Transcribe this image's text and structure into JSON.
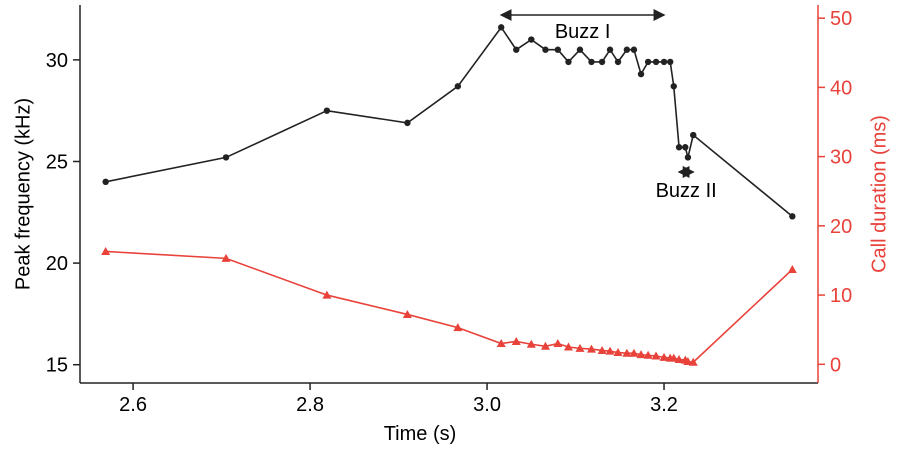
{
  "chart_data": {
    "type": "line",
    "x_label": "Time (s)",
    "y_label": "Peak frequency (kHz)",
    "y2_label": "Call duration (ms)",
    "x": [
      2.569,
      2.705,
      2.819,
      2.91,
      2.967,
      3.016,
      3.033,
      3.05,
      3.066,
      3.08,
      3.092,
      3.105,
      3.118,
      3.13,
      3.139,
      3.148,
      3.158,
      3.166,
      3.174,
      3.182,
      3.191,
      3.2,
      3.207,
      3.211,
      3.217,
      3.224,
      3.227,
      3.233,
      3.345
    ],
    "series": [
      {
        "color": "#222222",
        "marker": "circle",
        "axis": "y",
        "values": [
          24.0,
          25.2,
          27.5,
          26.9,
          28.7,
          31.6,
          30.5,
          31.0,
          30.5,
          30.5,
          29.9,
          30.5,
          29.9,
          29.9,
          30.5,
          29.9,
          30.5,
          30.5,
          29.3,
          29.9,
          29.9,
          29.9,
          29.9,
          28.7,
          25.7,
          25.7,
          25.2,
          26.3,
          22.3
        ]
      },
      {
        "color": "#e8423a",
        "marker": "triangle",
        "axis": "y2",
        "values": [
          16.3,
          15.3,
          10.0,
          7.2,
          5.3,
          3.0,
          3.3,
          2.9,
          2.6,
          3.0,
          2.5,
          2.3,
          2.2,
          2.0,
          1.9,
          1.7,
          1.6,
          1.6,
          1.4,
          1.3,
          1.2,
          1.0,
          0.9,
          0.9,
          0.7,
          0.6,
          0.4,
          0.3,
          13.7
        ]
      }
    ],
    "xlim": [
      2.54,
      3.374
    ],
    "xticks": [
      2.6,
      2.8,
      {
        "value": 3.0,
        "label": "3.0"
      },
      3.2
    ],
    "ylim": [
      14.1,
      32.7
    ],
    "yticks": [
      15,
      20,
      25,
      30
    ],
    "y2lim": [
      -2.7,
      51.9
    ],
    "y2ticks": [
      0,
      10,
      20,
      30,
      40,
      50
    ],
    "y2_color": "#e8423a",
    "annotations": [
      {
        "text": "Buzz I",
        "x_range": [
          3.016,
          3.2
        ]
      },
      {
        "text": "Buzz II",
        "x_range": [
          3.217,
          3.233
        ]
      }
    ]
  }
}
